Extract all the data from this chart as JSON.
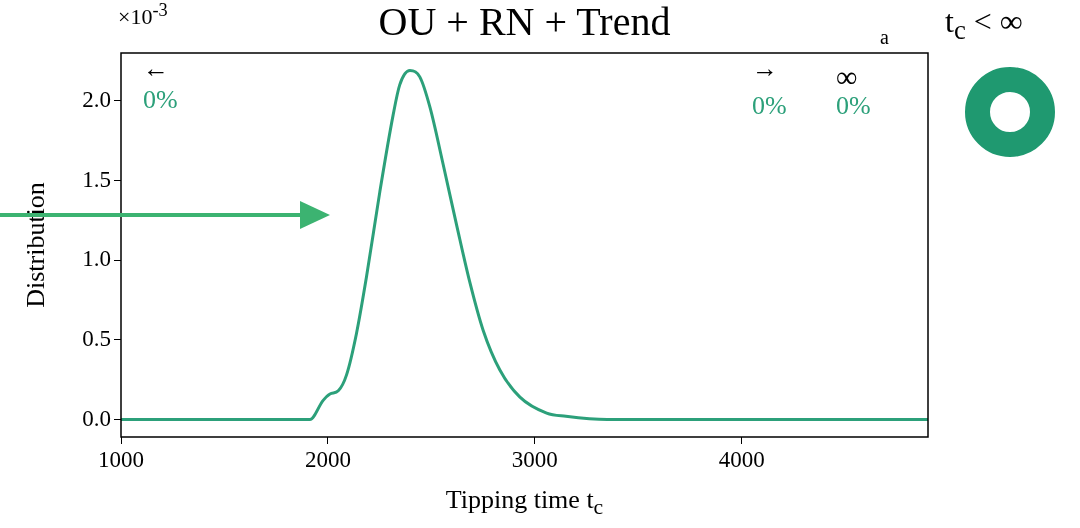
{
  "chart_data": {
    "type": "line",
    "title": "OU + RN + Trend",
    "xlabel": "Tipping time t$_{c}$",
    "ylabel": "Distribution",
    "annotations": [
      "×10$^{-3}$",
      "a",
      "t$_{c}$ < ∞",
      "←",
      "0%",
      "→",
      "0%",
      "∞",
      "0%"
    ],
    "x": [
      1000,
      1913,
      1977,
      2010,
      2050,
      2090,
      2138,
      2187,
      2251,
      2315,
      2347,
      2396,
      2444,
      2493,
      2557,
      2622,
      2686,
      2750,
      2831,
      2928,
      3057,
      3150,
      3350,
      4900
    ],
    "series": [
      {
        "color": "#2ca07a",
        "values": [
          0,
          0,
          0.12,
          0.16,
          0.18,
          0.28,
          0.54,
          0.9,
          1.43,
          1.91,
          2.1,
          2.19,
          2.15,
          1.96,
          1.6,
          1.22,
          0.86,
          0.56,
          0.31,
          0.14,
          0.04,
          0.02,
          0,
          0
        ]
      }
    ],
    "xlim": [
      1000,
      4900
    ],
    "xticks": [
      1000,
      2000,
      3000,
      4000
    ],
    "ylim": [
      -0.11,
      2.3
    ],
    "yticks": [
      {
        "value": 0,
        "label": "0.0"
      },
      {
        "value": 0.5,
        "label": "0.5"
      },
      {
        "value": 1,
        "label": "1.0"
      },
      {
        "value": 1.5,
        "label": "1.5"
      },
      {
        "value": 2,
        "label": "2.0"
      }
    ],
    "grid": false,
    "legend": false,
    "marker": "none",
    "line_style": "solid"
  }
}
